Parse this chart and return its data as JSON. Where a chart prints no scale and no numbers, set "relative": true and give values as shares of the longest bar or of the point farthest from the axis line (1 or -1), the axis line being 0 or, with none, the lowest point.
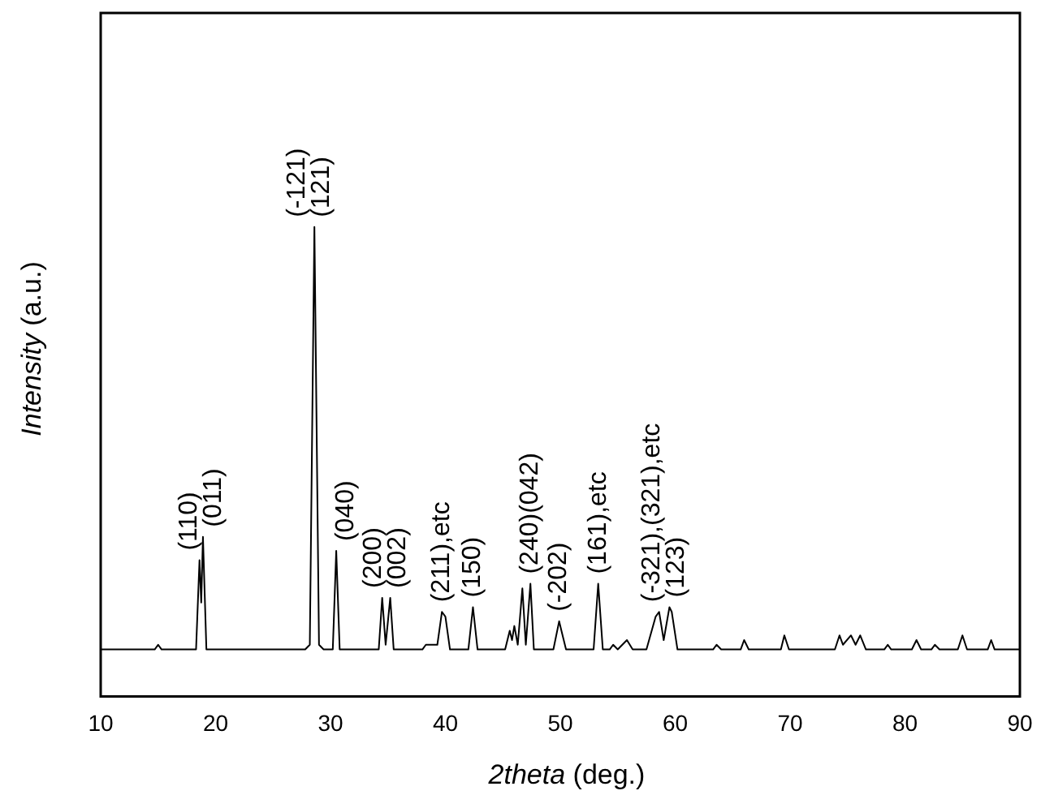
{
  "chart_data": {
    "type": "line",
    "relative": true,
    "xlabel": "2theta (deg.)",
    "ylabel": "Intensity (a.u.)",
    "xlim": [
      10,
      90
    ],
    "xticks": [
      10,
      20,
      30,
      40,
      50,
      60,
      70,
      80,
      90
    ],
    "grid": false,
    "legend": false,
    "marker": "none",
    "line_style": "solid",
    "series": [
      {
        "color": "#000000",
        "x": [
          10,
          14.7,
          15.0,
          15.3,
          18.3,
          18.6,
          18.75,
          18.9,
          19.2,
          27.8,
          28.2,
          28.6,
          29.0,
          29.4,
          30.2,
          30.5,
          30.8,
          34.2,
          34.5,
          34.8,
          35.2,
          35.5,
          38.0,
          38.3,
          39.3,
          39.7,
          40.0,
          40.4,
          42.0,
          42.4,
          42.8,
          45.2,
          45.6,
          45.8,
          46.0,
          46.3,
          46.7,
          47.0,
          47.4,
          47.7,
          49.4,
          49.9,
          50.1,
          50.5,
          52.9,
          53.3,
          53.7,
          54.3,
          54.6,
          55.0,
          55.8,
          56.3,
          57.5,
          58.3,
          58.6,
          59.0,
          59.5,
          59.7,
          60.2,
          63.3,
          63.6,
          64.0,
          65.7,
          66.0,
          66.4,
          69.2,
          69.5,
          69.9,
          73.9,
          74.3,
          74.6,
          75.3,
          75.7,
          76.1,
          76.6,
          78.2,
          78.5,
          78.8,
          80.6,
          81.0,
          81.4,
          82.3,
          82.6,
          83.0,
          84.6,
          85.0,
          85.4,
          87.2,
          87.5,
          87.8,
          90
        ],
        "values": [
          0.1,
          0.1,
          0.11,
          0.1,
          0.1,
          0.29,
          0.2,
          0.34,
          0.1,
          0.1,
          0.11,
          1.0,
          0.11,
          0.1,
          0.1,
          0.31,
          0.1,
          0.1,
          0.21,
          0.11,
          0.21,
          0.1,
          0.1,
          0.11,
          0.11,
          0.18,
          0.17,
          0.1,
          0.1,
          0.19,
          0.1,
          0.1,
          0.14,
          0.12,
          0.15,
          0.11,
          0.23,
          0.11,
          0.24,
          0.1,
          0.1,
          0.16,
          0.14,
          0.1,
          0.1,
          0.24,
          0.1,
          0.1,
          0.11,
          0.1,
          0.12,
          0.1,
          0.1,
          0.17,
          0.18,
          0.12,
          0.19,
          0.18,
          0.1,
          0.1,
          0.11,
          0.1,
          0.1,
          0.12,
          0.1,
          0.1,
          0.13,
          0.1,
          0.1,
          0.13,
          0.11,
          0.13,
          0.11,
          0.13,
          0.1,
          0.1,
          0.11,
          0.1,
          0.1,
          0.12,
          0.1,
          0.1,
          0.11,
          0.1,
          0.1,
          0.13,
          0.1,
          0.1,
          0.12,
          0.1,
          0.1
        ]
      }
    ],
    "annotations": [
      {
        "text": "(110)",
        "x": 18.6,
        "y": 0.29
      },
      {
        "text": "(011)",
        "x": 18.9,
        "y": 0.34
      },
      {
        "text": "(-121)",
        "x": 28.6,
        "y": 1.0
      },
      {
        "text": "(121)",
        "x": 28.6,
        "y": 1.0
      },
      {
        "text": "(040)",
        "x": 30.5,
        "y": 0.31
      },
      {
        "text": "(200)",
        "x": 34.5,
        "y": 0.21
      },
      {
        "text": "(002)",
        "x": 35.2,
        "y": 0.21
      },
      {
        "text": "(211),etc",
        "x": 39.7,
        "y": 0.18
      },
      {
        "text": "(150)",
        "x": 42.4,
        "y": 0.19
      },
      {
        "text": "(240)(042)",
        "x": 47.4,
        "y": 0.24
      },
      {
        "text": "(-202)",
        "x": 49.9,
        "y": 0.16
      },
      {
        "text": "(161),etc",
        "x": 53.3,
        "y": 0.24
      },
      {
        "text": "(-321),(321),etc",
        "x": 58.6,
        "y": 0.18
      },
      {
        "text": "(123)",
        "x": 59.5,
        "y": 0.19
      }
    ]
  }
}
